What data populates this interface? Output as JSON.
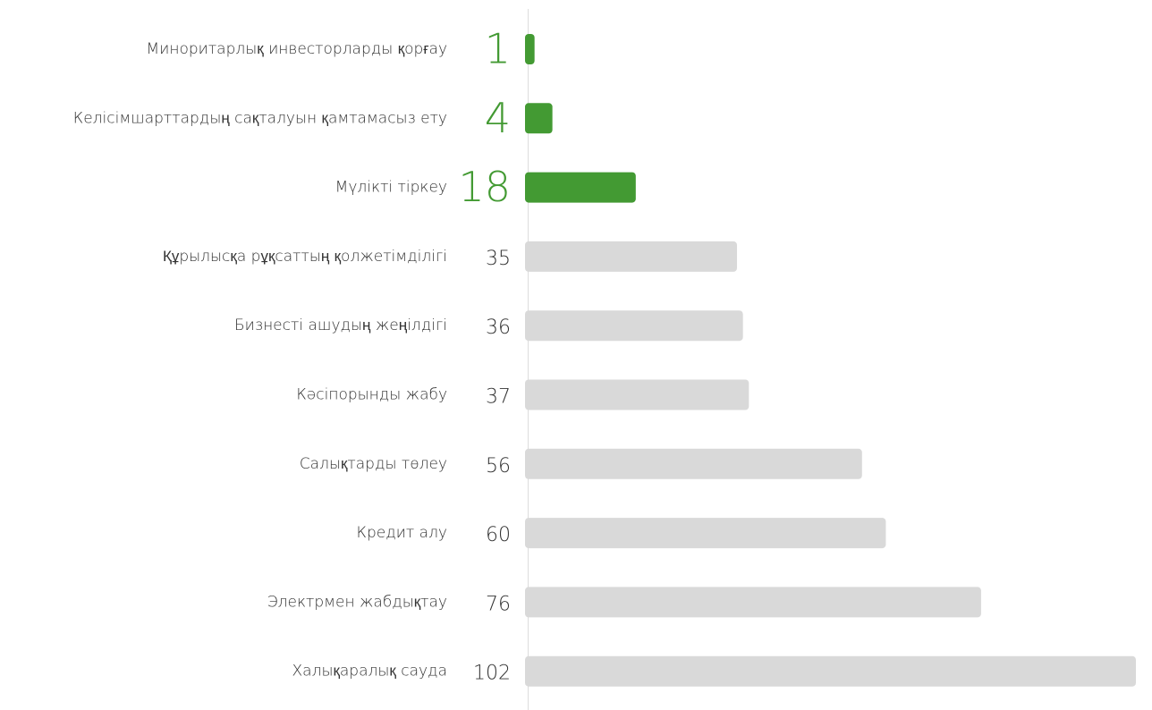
{
  "chart_data": {
    "type": "hbar",
    "categories": [
      "Миноритарлық инвесторларды қорғау",
      "Келісімшарттардың сақталуын қамтамасыз ету",
      "Мүлікті тіркеу",
      "Құрылысқа рұқсаттың қолжетімділігі",
      "Бизнесті ашудың жеңілдігі",
      "Кәсіпорынды жабу",
      "Салықтарды төлеу",
      "Кредит алу",
      "Электрмен жабдықтау",
      "Халықаралық сауда"
    ],
    "values": [
      1,
      4,
      18,
      35,
      36,
      37,
      56,
      60,
      76,
      102
    ],
    "colors": [
      "#439a33",
      "#439a33",
      "#439a33",
      "#d9d9d9",
      "#d9d9d9",
      "#d9d9d9",
      "#d9d9d9",
      "#d9d9d9",
      "#d9d9d9",
      "#d9d9d9"
    ]
  }
}
